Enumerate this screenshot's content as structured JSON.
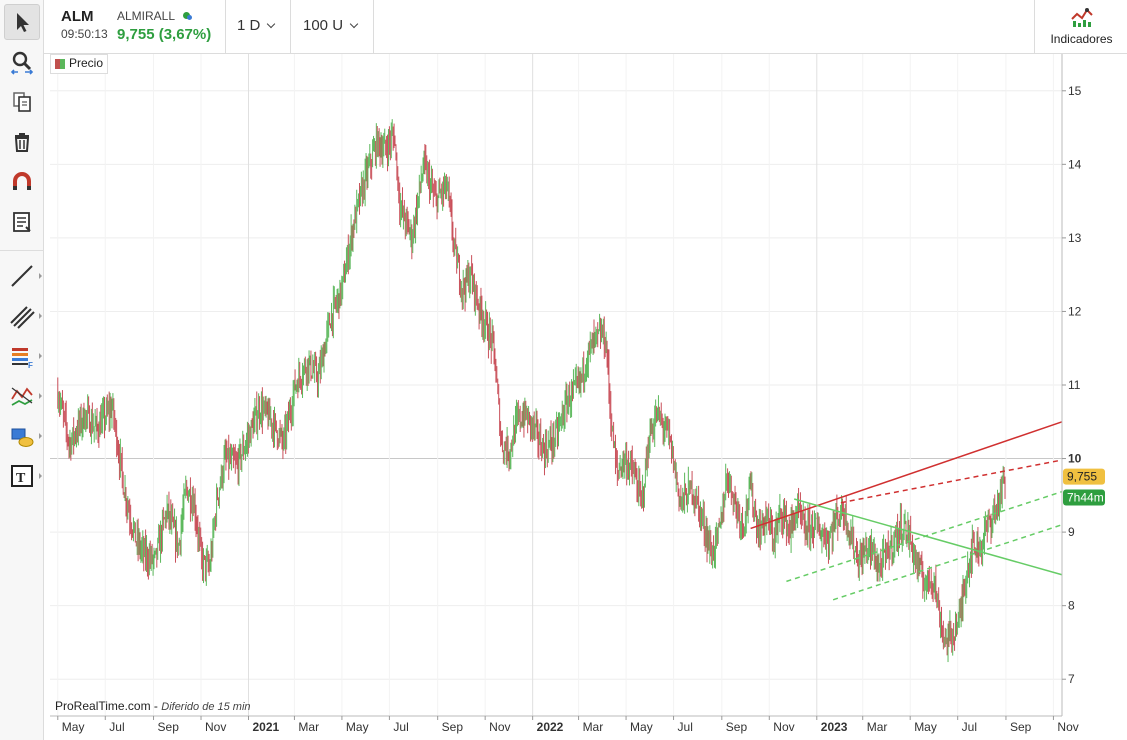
{
  "header": {
    "symbol": "ALM",
    "time": "09:50:13",
    "name": "ALMIRALL",
    "price": "9,755 (3,67%)",
    "interval": "1 D",
    "units": "100 U",
    "indicators_label": "Indicadores"
  },
  "toolbar": {
    "items": [
      "pointer-icon",
      "zoom-icon",
      "copy-icon",
      "trash-icon",
      "magnet-icon",
      "list-icon",
      "line-icon",
      "channel-icon",
      "fibonacci-icon",
      "pattern-icon",
      "shapes-icon",
      "text-icon"
    ]
  },
  "legend": {
    "label": "Precio"
  },
  "footer": {
    "brand": "ProRealTime.com",
    "delay": "Diferido de 15 min"
  },
  "chart_data": {
    "type": "candlestick",
    "y_axis": {
      "ticks": [
        7,
        8,
        9,
        10,
        11,
        12,
        13,
        14,
        15
      ],
      "range": [
        6.5,
        15.5
      ],
      "position": "right"
    },
    "x_axis": {
      "ticks": [
        {
          "label": "May",
          "t": 0
        },
        {
          "label": "Jul",
          "t": 61
        },
        {
          "label": "Sep",
          "t": 123
        },
        {
          "label": "Nov",
          "t": 184
        },
        {
          "label": "2021",
          "t": 245,
          "bold": true
        },
        {
          "label": "Mar",
          "t": 304
        },
        {
          "label": "May",
          "t": 365
        },
        {
          "label": "Jul",
          "t": 426
        },
        {
          "label": "Sep",
          "t": 488
        },
        {
          "label": "Nov",
          "t": 549
        },
        {
          "label": "2022",
          "t": 610,
          "bold": true
        },
        {
          "label": "Mar",
          "t": 669
        },
        {
          "label": "May",
          "t": 730
        },
        {
          "label": "Jul",
          "t": 791
        },
        {
          "label": "Sep",
          "t": 853
        },
        {
          "label": "Nov",
          "t": 914
        },
        {
          "label": "2023",
          "t": 975,
          "bold": true
        },
        {
          "label": "Mar",
          "t": 1034
        },
        {
          "label": "May",
          "t": 1095
        },
        {
          "label": "Jul",
          "t": 1156
        },
        {
          "label": "Sep",
          "t": 1218
        },
        {
          "label": "Nov",
          "t": 1279
        }
      ],
      "range": [
        -10,
        1290
      ]
    },
    "price_path": [
      [
        0,
        10.9
      ],
      [
        15,
        10.2
      ],
      [
        35,
        10.6
      ],
      [
        50,
        10.4
      ],
      [
        70,
        10.7
      ],
      [
        85,
        9.6
      ],
      [
        100,
        8.9
      ],
      [
        110,
        8.7
      ],
      [
        125,
        8.6
      ],
      [
        140,
        9.3
      ],
      [
        155,
        8.8
      ],
      [
        165,
        9.6
      ],
      [
        175,
        9.4
      ],
      [
        185,
        8.6
      ],
      [
        195,
        8.5
      ],
      [
        205,
        9.5
      ],
      [
        215,
        10.0
      ],
      [
        230,
        9.9
      ],
      [
        245,
        10.3
      ],
      [
        260,
        10.7
      ],
      [
        275,
        10.5
      ],
      [
        290,
        10.2
      ],
      [
        305,
        11.0
      ],
      [
        320,
        11.3
      ],
      [
        335,
        11.1
      ],
      [
        350,
        11.9
      ],
      [
        365,
        12.3
      ],
      [
        380,
        13.2
      ],
      [
        395,
        13.8
      ],
      [
        410,
        14.3
      ],
      [
        420,
        14.2
      ],
      [
        432,
        14.4
      ],
      [
        440,
        13.4
      ],
      [
        455,
        13.0
      ],
      [
        470,
        14.0
      ],
      [
        485,
        13.5
      ],
      [
        500,
        13.7
      ],
      [
        510,
        12.8
      ],
      [
        520,
        12.3
      ],
      [
        530,
        12.5
      ],
      [
        540,
        12.1
      ],
      [
        550,
        11.8
      ],
      [
        560,
        11.5
      ],
      [
        570,
        10.2
      ],
      [
        580,
        10.1
      ],
      [
        590,
        10.5
      ],
      [
        600,
        10.6
      ],
      [
        612,
        10.4
      ],
      [
        625,
        10.1
      ],
      [
        640,
        10.3
      ],
      [
        655,
        10.8
      ],
      [
        670,
        11.0
      ],
      [
        680,
        11.4
      ],
      [
        690,
        11.6
      ],
      [
        700,
        11.7
      ],
      [
        705,
        11.5
      ],
      [
        710,
        10.6
      ],
      [
        718,
        9.8
      ],
      [
        728,
        10.0
      ],
      [
        740,
        9.8
      ],
      [
        750,
        9.4
      ],
      [
        760,
        10.3
      ],
      [
        770,
        10.6
      ],
      [
        785,
        10.3
      ],
      [
        800,
        9.4
      ],
      [
        815,
        9.6
      ],
      [
        830,
        9.1
      ],
      [
        840,
        8.7
      ],
      [
        850,
        9.0
      ],
      [
        860,
        9.8
      ],
      [
        870,
        9.4
      ],
      [
        880,
        9.1
      ],
      [
        890,
        9.6
      ],
      [
        900,
        9.0
      ],
      [
        910,
        9.2
      ],
      [
        920,
        8.9
      ],
      [
        930,
        9.3
      ],
      [
        940,
        9.0
      ],
      [
        950,
        9.3
      ],
      [
        960,
        9.0
      ],
      [
        970,
        9.1
      ],
      [
        980,
        9.0
      ],
      [
        990,
        8.9
      ],
      [
        1000,
        9.2
      ],
      [
        1010,
        9.3
      ],
      [
        1020,
        8.9
      ],
      [
        1030,
        8.6
      ],
      [
        1040,
        8.8
      ],
      [
        1048,
        8.7
      ],
      [
        1055,
        8.5
      ],
      [
        1065,
        8.7
      ],
      [
        1075,
        8.9
      ],
      [
        1085,
        9.1
      ],
      [
        1095,
        8.9
      ],
      [
        1105,
        8.5
      ],
      [
        1115,
        8.3
      ],
      [
        1125,
        8.4
      ],
      [
        1132,
        7.9
      ],
      [
        1140,
        7.5
      ],
      [
        1148,
        7.6
      ],
      [
        1158,
        7.8
      ],
      [
        1166,
        8.4
      ],
      [
        1175,
        8.8
      ],
      [
        1185,
        8.8
      ],
      [
        1195,
        9.1
      ],
      [
        1205,
        9.3
      ],
      [
        1212,
        9.55
      ],
      [
        1218,
        9.755
      ]
    ],
    "drawings": [
      {
        "kind": "line",
        "color": "#d03030",
        "dash": false,
        "x1": 890,
        "y1": 9.05,
        "x2": 1290,
        "y2": 10.5
      },
      {
        "kind": "line",
        "color": "#d03030",
        "dash": true,
        "x1": 1006,
        "y1": 9.4,
        "x2": 1290,
        "y2": 9.98
      },
      {
        "kind": "line",
        "color": "#66cc66",
        "dash": false,
        "x1": 946,
        "y1": 9.45,
        "x2": 1290,
        "y2": 8.42
      },
      {
        "kind": "line",
        "color": "#66cc66",
        "dash": true,
        "x1": 936,
        "y1": 8.33,
        "x2": 1290,
        "y2": 9.55
      },
      {
        "kind": "line",
        "color": "#66cc66",
        "dash": true,
        "x1": 996,
        "y1": 8.08,
        "x2": 1290,
        "y2": 9.1
      }
    ],
    "last_price": {
      "label": "9,755",
      "value": 9.755,
      "color": "#f0c040"
    },
    "countdown": {
      "label": "7h44m",
      "value": 9.47,
      "color": "#2e9e3f"
    },
    "reference_line": 10
  }
}
